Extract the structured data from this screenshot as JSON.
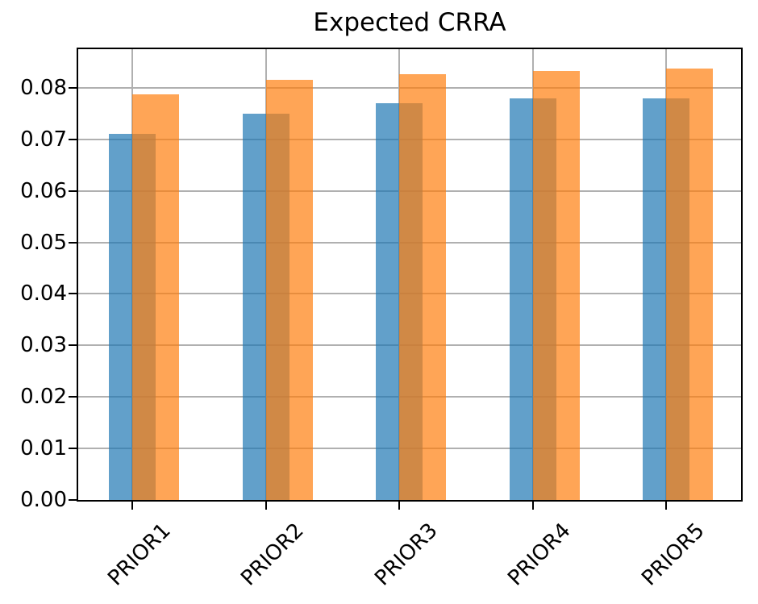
{
  "chart_data": {
    "type": "bar",
    "title": "Expected CRRA",
    "categories": [
      "PRIOR1",
      "PRIOR2",
      "PRIOR3",
      "PRIOR4",
      "PRIOR5"
    ],
    "series": [
      {
        "name": "",
        "color": "#1f77b4",
        "alpha": 0.7,
        "values": [
          0.071,
          0.075,
          0.077,
          0.078,
          0.078
        ]
      },
      {
        "name": "",
        "color": "#ff7f0e",
        "alpha": 0.7,
        "values": [
          0.0788,
          0.0815,
          0.0826,
          0.0832,
          0.0838
        ]
      }
    ],
    "xlabel": "",
    "ylabel": "",
    "ylim": [
      0,
      0.0875
    ],
    "yticks": [
      0,
      0.01,
      0.02,
      0.03,
      0.04,
      0.05,
      0.06,
      0.07,
      0.08
    ],
    "ytick_labels": [
      "0.00",
      "0.01",
      "0.02",
      "0.03",
      "0.04",
      "0.05",
      "0.06",
      "0.07",
      "0.08"
    ],
    "xtick_rotation": 45,
    "grid": true,
    "grid_color": "#b0b0b0",
    "spine_color": "#000000",
    "background": "#ffffff",
    "legend": "none",
    "bar_style": "two overlapping translucent bars per category; orange series offset right by half a bar width; gridlines visible through bars"
  }
}
